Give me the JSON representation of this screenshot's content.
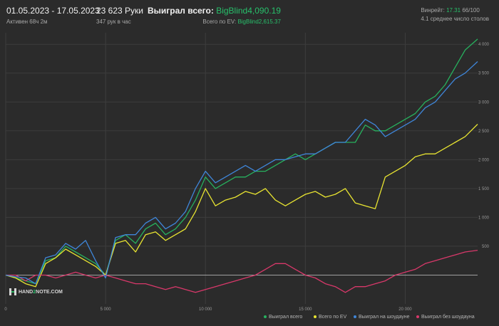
{
  "header": {
    "date_range": "01.05.2023 - 17.05.2023",
    "active": "Активен 68ч 2м",
    "hands": "23 623 Руки",
    "hands_per_hour": "347 рук в час",
    "won_label": "Выиграл всего:",
    "won_value": "BigBlind4,090.19",
    "ev_label": "Всего по EV:",
    "ev_value": "BigBlind2,615.37",
    "winrate_label": "Винрейт:",
    "winrate_value": "17.31",
    "winrate_suffix": "66/100",
    "avg_tables": "4.1 среднее число столов"
  },
  "logo": {
    "text_a": "HAND",
    "text_b": "2",
    "text_c": "NOTE.COM"
  },
  "colors": {
    "won": "#27b15e",
    "ev": "#e8e431",
    "showdown": "#3f86d9",
    "non_showdown": "#d8386a",
    "zero_line": "#c8c8c8",
    "grid": "#3d3d3d"
  },
  "chart_data": {
    "type": "line",
    "xlim": [
      0,
      23623
    ],
    "ylim": [
      -500,
      4200
    ],
    "x_ticks": [
      0,
      5000,
      10000,
      15000,
      20000
    ],
    "x_tick_labels": [
      "0",
      "5 000",
      "10 000",
      "15 000",
      "20 000"
    ],
    "y_ticks": [
      500,
      1000,
      1500,
      2000,
      2500,
      3000,
      3500,
      4000
    ],
    "y_tick_labels": [
      "500",
      "1 000",
      "1 500",
      "2 000",
      "2 500",
      "3 000",
      "3 500",
      "4 000"
    ],
    "x": [
      0,
      500,
      1000,
      1500,
      2000,
      2500,
      3000,
      3500,
      4000,
      4500,
      5000,
      5500,
      6000,
      6500,
      7000,
      7500,
      8000,
      8500,
      9000,
      9500,
      10000,
      10500,
      11000,
      11500,
      12000,
      12500,
      13000,
      13500,
      14000,
      14500,
      15000,
      15500,
      16000,
      16500,
      17000,
      17500,
      18000,
      18500,
      19000,
      19500,
      20000,
      20500,
      21000,
      21500,
      22000,
      22500,
      23000,
      23623
    ],
    "series": [
      {
        "name": "Выиграл всего",
        "values": [
          0,
          -50,
          -100,
          -150,
          250,
          300,
          500,
          400,
          300,
          200,
          0,
          600,
          700,
          550,
          800,
          900,
          700,
          800,
          1000,
          1300,
          1700,
          1500,
          1600,
          1700,
          1700,
          1800,
          1800,
          1900,
          2000,
          2100,
          2000,
          2100,
          2200,
          2300,
          2300,
          2300,
          2600,
          2500,
          2500,
          2600,
          2700,
          2800,
          3000,
          3100,
          3300,
          3600,
          3900,
          4090
        ]
      },
      {
        "name": "Всего по EV",
        "values": [
          0,
          -50,
          -150,
          -200,
          200,
          300,
          450,
          350,
          250,
          150,
          0,
          550,
          600,
          400,
          700,
          750,
          600,
          700,
          800,
          1100,
          1500,
          1200,
          1300,
          1350,
          1450,
          1400,
          1500,
          1300,
          1200,
          1300,
          1400,
          1450,
          1350,
          1400,
          1500,
          1250,
          1200,
          1150,
          1700,
          1800,
          1900,
          2050,
          2100,
          2100,
          2200,
          2300,
          2400,
          2615
        ]
      },
      {
        "name": "Выиграл на шоудауне",
        "values": [
          0,
          -30,
          -50,
          -150,
          300,
          350,
          550,
          450,
          600,
          250,
          -50,
          650,
          700,
          700,
          900,
          1000,
          800,
          900,
          1100,
          1500,
          1800,
          1600,
          1700,
          1800,
          1900,
          1800,
          1900,
          2000,
          2000,
          2050,
          2100,
          2100,
          2200,
          2300,
          2300,
          2500,
          2700,
          2600,
          2400,
          2500,
          2600,
          2700,
          2900,
          3000,
          3200,
          3400,
          3500,
          3700
        ]
      },
      {
        "name": "Выиграл без шоудауна",
        "values": [
          0,
          0,
          -100,
          0,
          0,
          -50,
          0,
          50,
          0,
          -50,
          0,
          -50,
          -100,
          -150,
          -150,
          -200,
          -250,
          -200,
          -250,
          -300,
          -250,
          -200,
          -150,
          -100,
          -50,
          0,
          100,
          200,
          200,
          100,
          0,
          -50,
          -150,
          -200,
          -300,
          -200,
          -200,
          -150,
          -100,
          0,
          50,
          100,
          200,
          250,
          300,
          350,
          400,
          430
        ]
      }
    ]
  }
}
